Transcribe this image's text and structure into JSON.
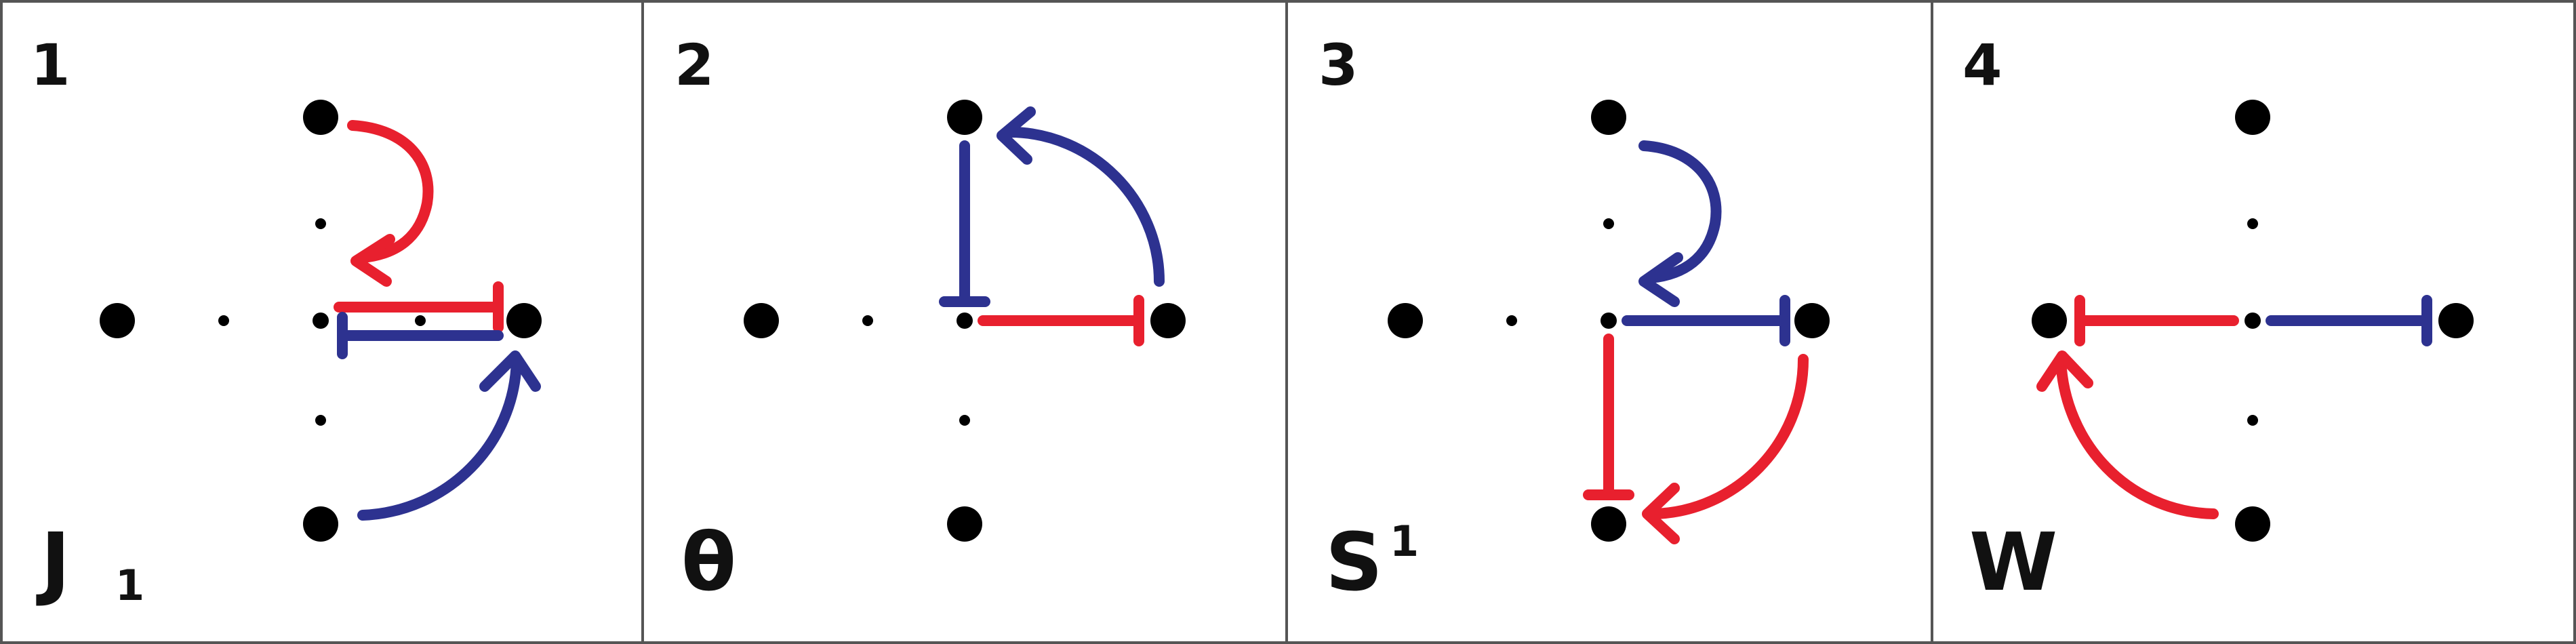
{
  "colors": {
    "red": "#e8202e",
    "blue": "#2d3290",
    "dot": "#000000",
    "border": "#555555",
    "background": "#ffffff"
  },
  "panels": [
    {
      "number": "1",
      "label": "J",
      "subscript": "1",
      "superscript": "",
      "arrows": [
        {
          "color": "red",
          "type": "curve",
          "from": "top",
          "to": "upper-inner"
        },
        {
          "color": "red",
          "type": "bar",
          "from": "center",
          "to": "right"
        },
        {
          "color": "blue",
          "type": "bar",
          "from": "right",
          "to": "center"
        },
        {
          "color": "blue",
          "type": "curve",
          "from": "bottom",
          "to": "right"
        }
      ]
    },
    {
      "number": "2",
      "label": "θ",
      "subscript": "",
      "superscript": "",
      "arrows": [
        {
          "color": "blue",
          "type": "bar",
          "from": "top",
          "to": "center"
        },
        {
          "color": "blue",
          "type": "curve",
          "from": "right",
          "to": "top"
        },
        {
          "color": "red",
          "type": "bar",
          "from": "center",
          "to": "right"
        }
      ]
    },
    {
      "number": "3",
      "label": "S",
      "subscript": "",
      "superscript": "1",
      "arrows": [
        {
          "color": "blue",
          "type": "curve",
          "from": "top",
          "to": "upper-inner"
        },
        {
          "color": "blue",
          "type": "bar",
          "from": "center",
          "to": "right"
        },
        {
          "color": "red",
          "type": "bar",
          "from": "center",
          "to": "bottom"
        },
        {
          "color": "red",
          "type": "curve",
          "from": "right",
          "to": "bottom"
        }
      ]
    },
    {
      "number": "4",
      "label": "W",
      "subscript": "",
      "superscript": "",
      "arrows": [
        {
          "color": "red",
          "type": "bar",
          "from": "center",
          "to": "left"
        },
        {
          "color": "blue",
          "type": "bar",
          "from": "center",
          "to": "right"
        },
        {
          "color": "red",
          "type": "curve",
          "from": "bottom",
          "to": "left"
        }
      ]
    }
  ]
}
